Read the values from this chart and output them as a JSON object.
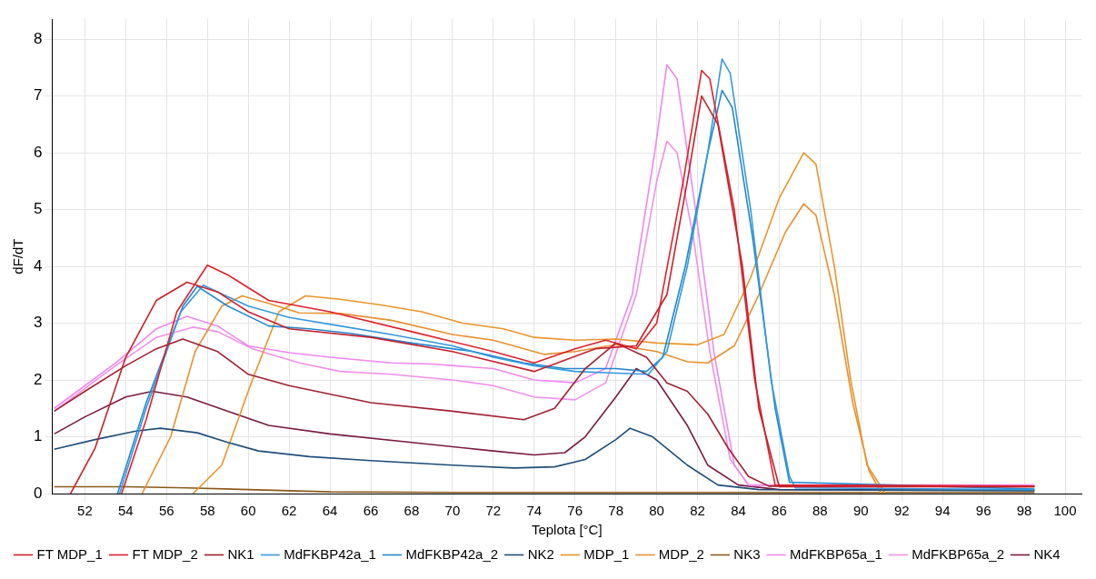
{
  "chart_data": {
    "type": "line",
    "xlabel": "Teplota [°C]",
    "ylabel": "dF/dT",
    "xlim": [
      50.4,
      100.8
    ],
    "xticks": [
      52,
      54,
      56,
      58,
      60,
      62,
      64,
      66,
      68,
      70,
      72,
      74,
      76,
      78,
      80,
      82,
      84,
      86,
      88,
      90,
      92,
      94,
      96,
      98,
      100
    ],
    "ylim": [
      0,
      8.35
    ],
    "yticks": [
      0,
      1,
      2,
      3,
      4,
      5,
      6,
      7,
      8
    ],
    "grid": true,
    "legend": "bottom",
    "marker": "none",
    "line_style": "solid",
    "series": [
      {
        "name": "FT MDP_1",
        "color": "#c8202a",
        "x": [
          51.3,
          52.5,
          54,
          55.5,
          57,
          58.5,
          60,
          62,
          66,
          70,
          74,
          77,
          79,
          80.5,
          81.5,
          82.2,
          83,
          84.2,
          85,
          86,
          98.5
        ],
        "values": [
          0,
          0.8,
          2.4,
          3.4,
          3.72,
          3.55,
          3.2,
          2.9,
          2.75,
          2.5,
          2.15,
          2.55,
          2.6,
          3.5,
          5.5,
          7.0,
          6.5,
          4,
          1.5,
          0.12,
          0.12
        ]
      },
      {
        "name": "FT MDP_2",
        "color": "#e0202a",
        "x": [
          53.8,
          55,
          56.5,
          58,
          59,
          61,
          64,
          68,
          72,
          74,
          76,
          77.5,
          79,
          80,
          81.3,
          82.2,
          82.6,
          83.8,
          84.8,
          85.8,
          98.5
        ],
        "values": [
          0,
          1.3,
          3.2,
          4.02,
          3.85,
          3.4,
          3.2,
          2.85,
          2.5,
          2.3,
          2.55,
          2.7,
          2.55,
          3,
          5.5,
          7.45,
          7.3,
          5,
          2,
          0.15,
          0.13
        ]
      },
      {
        "name": "NK1",
        "color": "#a02030",
        "x": [
          50.5,
          52,
          54,
          55.5,
          56.8,
          58.5,
          60,
          62,
          66,
          70,
          73.5,
          75,
          76.5,
          78,
          79.5,
          80.5,
          81.5,
          82.5,
          83.5,
          84.5,
          85.5,
          98.5
        ],
        "values": [
          1.45,
          1.8,
          2.25,
          2.55,
          2.72,
          2.5,
          2.1,
          1.9,
          1.6,
          1.45,
          1.3,
          1.5,
          2.2,
          2.65,
          2.4,
          1.95,
          1.8,
          1.4,
          0.8,
          0.3,
          0.13,
          0.12
        ]
      },
      {
        "name": "MdFKBP42a_1",
        "color": "#3399dd",
        "x": [
          53.7,
          55,
          56.7,
          57.8,
          58.5,
          60,
          62,
          64.5,
          67,
          70,
          72,
          74,
          76,
          78,
          79.6,
          80.5,
          81.5,
          82.5,
          83.2,
          83.6,
          84.6,
          85.6,
          86.5,
          86.8,
          98.5
        ],
        "values": [
          0,
          1.5,
          3.2,
          3.67,
          3.55,
          3.3,
          3.1,
          2.95,
          2.8,
          2.6,
          2.4,
          2.25,
          2.15,
          2.12,
          2.1,
          2.5,
          4,
          6,
          7.65,
          7.4,
          5,
          2,
          0.3,
          0.1,
          0.07
        ]
      },
      {
        "name": "MdFKBP42a_2",
        "color": "#2288cc",
        "x": [
          53.6,
          55,
          56.8,
          57.5,
          59,
          61,
          63,
          65,
          68,
          71,
          73.5,
          75.5,
          78,
          79.5,
          80.3,
          81.4,
          82.5,
          83.2,
          83.7,
          84.7,
          85.8,
          86.5,
          98.5
        ],
        "values": [
          0,
          1.6,
          3.3,
          3.65,
          3.3,
          2.95,
          2.9,
          2.82,
          2.65,
          2.5,
          2.3,
          2.2,
          2.2,
          2.15,
          2.4,
          4,
          6,
          7.1,
          6.8,
          4.5,
          1.5,
          0.2,
          0.08
        ]
      },
      {
        "name": "NK2",
        "color": "#1f4e79",
        "x": [
          50.5,
          52.5,
          54.5,
          55.7,
          57.5,
          59,
          60.5,
          63,
          66,
          70,
          73,
          75,
          76.5,
          78,
          78.7,
          79.8,
          81.5,
          83,
          85,
          98.5
        ],
        "values": [
          0.78,
          0.95,
          1.1,
          1.15,
          1.07,
          0.9,
          0.75,
          0.65,
          0.58,
          0.5,
          0.45,
          0.47,
          0.6,
          0.95,
          1.15,
          1.0,
          0.5,
          0.15,
          0.07,
          0.05
        ]
      },
      {
        "name": "MDP_1",
        "color": "#e8952a",
        "x": [
          57.3,
          58.7,
          60.2,
          61.5,
          62.8,
          64.5,
          66.5,
          68.5,
          70.5,
          72.5,
          74,
          76,
          78,
          80,
          82,
          83.3,
          84.6,
          86,
          87.2,
          87.8,
          88.7,
          89.5,
          90.3,
          91.2
        ],
        "values": [
          0,
          0.5,
          2,
          3.2,
          3.48,
          3.42,
          3.32,
          3.2,
          3.0,
          2.9,
          2.75,
          2.7,
          2.72,
          2.65,
          2.62,
          2.8,
          3.8,
          5.2,
          6.0,
          5.8,
          4,
          2,
          0.5,
          0
        ]
      },
      {
        "name": "MDP_2",
        "color": "#e89030",
        "x": [
          54.8,
          56.2,
          57.4,
          58.7,
          59.7,
          61,
          62.5,
          64.5,
          67,
          70,
          72,
          74.5,
          76,
          78,
          80,
          81.5,
          82.5,
          83.8,
          85,
          86.3,
          87.2,
          87.8,
          88.7,
          89.6,
          90.4,
          91
        ],
        "values": [
          0,
          1,
          2.5,
          3.3,
          3.48,
          3.35,
          3.18,
          3.17,
          3.05,
          2.8,
          2.7,
          2.45,
          2.5,
          2.62,
          2.5,
          2.32,
          2.3,
          2.6,
          3.5,
          4.6,
          5.1,
          4.9,
          3.5,
          1.6,
          0.4,
          0
        ]
      },
      {
        "name": "NK3",
        "color": "#8b5a1a",
        "x": [
          50.5,
          54,
          57,
          60,
          64,
          70,
          98.5
        ],
        "values": [
          0.12,
          0.12,
          0.1,
          0.07,
          0.03,
          0.02,
          0.02
        ]
      },
      {
        "name": "MdFKBP65a_1",
        "color": "#ee88ee",
        "x": [
          50.5,
          53.5,
          55.5,
          57,
          58.5,
          60,
          62,
          64,
          67,
          69,
          72,
          74,
          76,
          77.5,
          78.8,
          79.9,
          80.5,
          81,
          81.9,
          82.8,
          83.8,
          84.5,
          98.5
        ],
        "values": [
          1.5,
          2.3,
          2.9,
          3.12,
          2.95,
          2.6,
          2.48,
          2.4,
          2.3,
          2.28,
          2.2,
          2.0,
          1.95,
          2.2,
          3.5,
          6,
          7.55,
          7.3,
          5,
          2.5,
          0.5,
          0.15,
          0.15
        ]
      },
      {
        "name": "MdFKBP65a_2",
        "color": "#f090e8",
        "x": [
          50.5,
          53.5,
          55.5,
          57.3,
          58.5,
          60.2,
          62.5,
          64.5,
          67,
          70,
          72,
          74,
          76,
          77.5,
          79,
          80,
          80.5,
          81,
          81.8,
          82.6,
          83.6,
          84.5,
          98.5
        ],
        "values": [
          1.45,
          2.25,
          2.75,
          2.93,
          2.85,
          2.55,
          2.3,
          2.15,
          2.1,
          2.0,
          1.9,
          1.7,
          1.65,
          1.95,
          3.5,
          5.5,
          6.2,
          6.0,
          4.5,
          2.5,
          0.6,
          0.15,
          0.13
        ]
      },
      {
        "name": "NK4",
        "color": "#7a1a40",
        "x": [
          50.5,
          52,
          54,
          55.3,
          57,
          59,
          61,
          64,
          68,
          72,
          74,
          75.5,
          76.5,
          78,
          79,
          80,
          81.5,
          82.5,
          84,
          86,
          98.5
        ],
        "values": [
          1.05,
          1.35,
          1.7,
          1.8,
          1.7,
          1.45,
          1.2,
          1.05,
          0.9,
          0.75,
          0.68,
          0.72,
          1.0,
          1.7,
          2.2,
          2.0,
          1.2,
          0.5,
          0.15,
          0.07,
          0.06
        ]
      }
    ]
  }
}
